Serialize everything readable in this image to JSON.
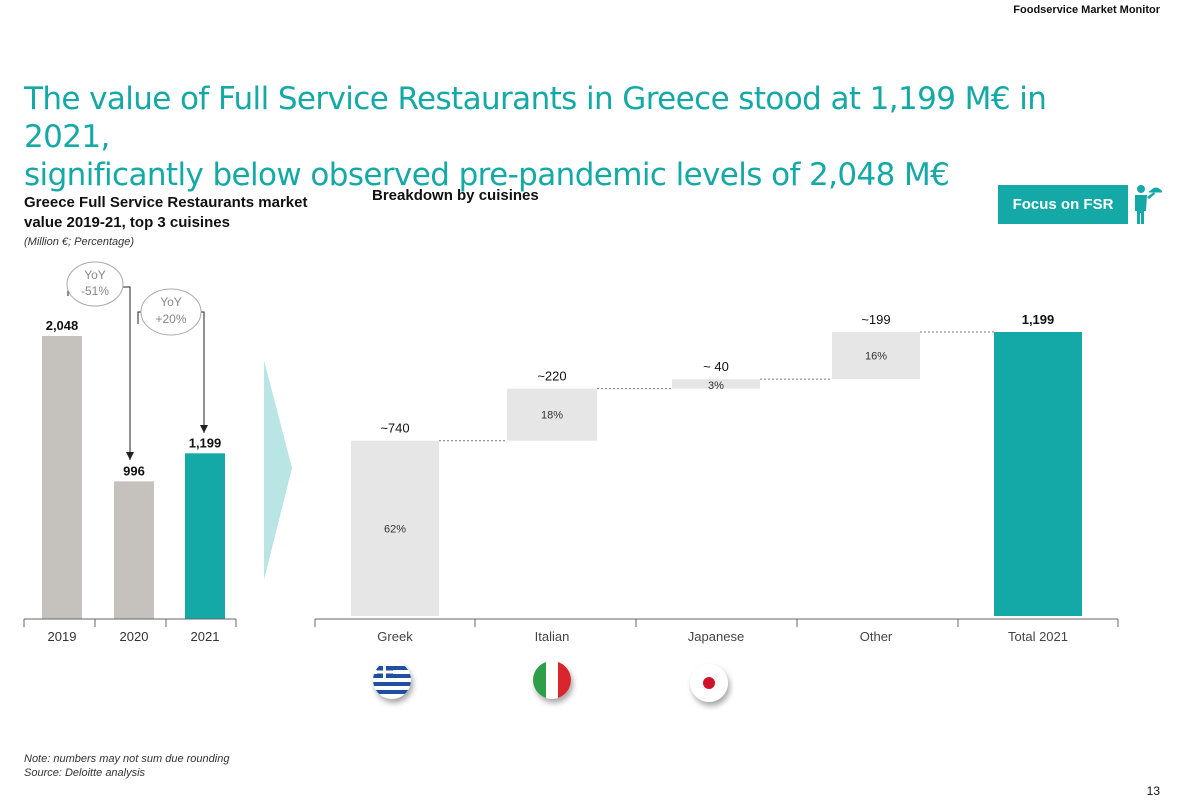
{
  "header": {
    "label": "Foodservice Market Monitor"
  },
  "title_line1": "The value of Full Service Restaurants in Greece stood at 1,199 M€ in 2021,",
  "title_line2": "significantly below observed pre-pandemic levels of 2,048 M€",
  "left_title": "Greece Full Service Restaurants market value 2019-21, top 3 cuisines",
  "units": "(Million €; Percentage)",
  "right_title": "Breakdown by cuisines",
  "focus_badge": "Focus on FSR",
  "note": "Note: numbers may not sum due rounding",
  "source": "Source: Deloitte analysis",
  "page_number": "13",
  "colors": {
    "teal": "#14a9a6",
    "grey_bar": "#c5c1bd",
    "light_grey": "#e6e6e6",
    "teal_light": "#b9e6e4"
  },
  "chart_data": [
    {
      "type": "bar",
      "categories": [
        "2019",
        "2020",
        "2021"
      ],
      "values": [
        2048,
        996,
        1199
      ],
      "value_labels": [
        "2,048",
        "996",
        "1,199"
      ],
      "colors": [
        "#c5c1bd",
        "#c5c1bd",
        "#14a9a6"
      ],
      "annotations": [
        {
          "text_line1": "YoY",
          "text_line2": "-51%"
        },
        {
          "text_line1": "YoY",
          "text_line2": "+20%"
        }
      ],
      "ylim": [
        0,
        2048
      ]
    },
    {
      "type": "bar",
      "subtype": "waterfall",
      "categories": [
        "Greek",
        "Italian",
        "Japanese",
        "Other",
        "Total 2021"
      ],
      "values": [
        740,
        220,
        40,
        199,
        1199
      ],
      "value_labels": [
        "~740",
        "~220",
        "~ 40",
        "~199",
        "1,199"
      ],
      "share_labels": [
        "62%",
        "18%",
        "3%",
        "16%",
        ""
      ],
      "flags": [
        "greece",
        "italy",
        "japan"
      ],
      "ylim": [
        0,
        1199
      ]
    }
  ]
}
